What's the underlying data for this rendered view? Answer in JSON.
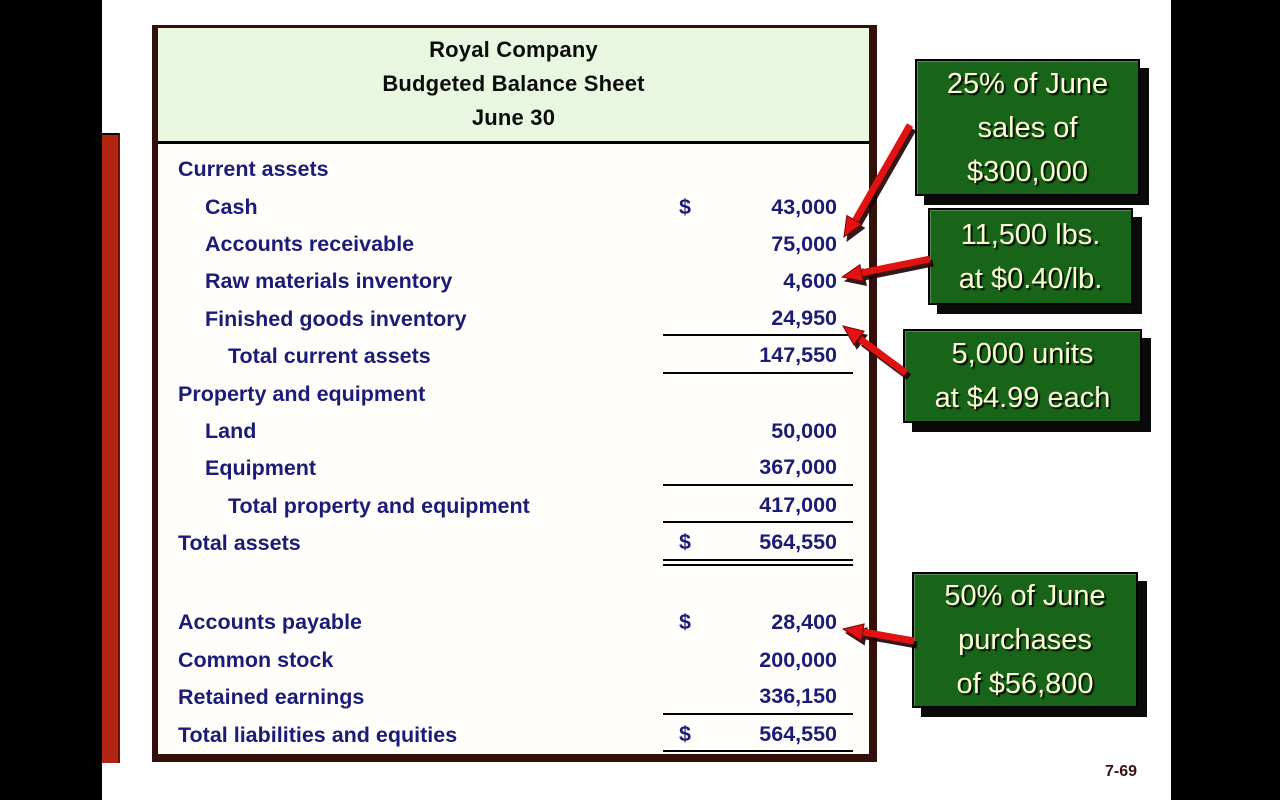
{
  "slide": {
    "page_number": "7-69"
  },
  "balance_sheet": {
    "title_lines": [
      "Royal Company",
      "Budgeted Balance Sheet",
      "June 30"
    ],
    "rows": [
      {
        "label": "Current assets",
        "indent": 0,
        "cur": "",
        "val": "",
        "rule": "none"
      },
      {
        "label": "Cash",
        "indent": 1,
        "cur": "$",
        "val": "43,000",
        "rule": "none"
      },
      {
        "label": "Accounts receivable",
        "indent": 1,
        "cur": "",
        "val": "75,000",
        "rule": "none"
      },
      {
        "label": "Raw materials inventory",
        "indent": 1,
        "cur": "",
        "val": "4,600",
        "rule": "none"
      },
      {
        "label": "Finished goods inventory",
        "indent": 1,
        "cur": "",
        "val": "24,950",
        "rule": "single"
      },
      {
        "label": "Total current assets",
        "indent": 2,
        "cur": "",
        "val": "147,550",
        "rule": "single"
      },
      {
        "label": "Property and equipment",
        "indent": 0,
        "cur": "",
        "val": "",
        "rule": "none"
      },
      {
        "label": "Land",
        "indent": 1,
        "cur": "",
        "val": "50,000",
        "rule": "none"
      },
      {
        "label": "Equipment",
        "indent": 1,
        "cur": "",
        "val": "367,000",
        "rule": "single"
      },
      {
        "label": "Total property and equipment",
        "indent": 2,
        "cur": "",
        "val": "417,000",
        "rule": "single"
      },
      {
        "label": "Total assets",
        "indent": 0,
        "cur": "$",
        "val": "564,550",
        "rule": "double"
      },
      {
        "label": "",
        "spacer": true
      },
      {
        "label": "Accounts payable",
        "indent": 0,
        "cur": "$",
        "val": "28,400",
        "rule": "none"
      },
      {
        "label": "Common stock",
        "indent": 0,
        "cur": "",
        "val": "200,000",
        "rule": "none"
      },
      {
        "label": "Retained earnings",
        "indent": 0,
        "cur": "",
        "val": "336,150",
        "rule": "single"
      },
      {
        "label": "Total liabilities and equities",
        "indent": 0,
        "cur": "$",
        "val": "564,550",
        "rule": "single"
      }
    ]
  },
  "callouts": [
    {
      "lines": [
        "25% of June",
        "sales of",
        "$300,000"
      ]
    },
    {
      "lines": [
        "11,500 lbs.",
        "at $0.40/lb."
      ]
    },
    {
      "lines": [
        "5,000 units",
        "at $4.99 each"
      ]
    },
    {
      "lines": [
        "50% of June",
        "purchases",
        "of $56,800"
      ]
    }
  ],
  "colors": {
    "callout_green": "#186418",
    "callout_text": "#ffffd4",
    "table_text_navy": "#1b1b78",
    "table_border_maroon": "#35100b",
    "header_green": "#eaf7e0",
    "arrow_red": "#e01212",
    "accent_bar_red": "#b02512",
    "page_number_maroon": "#3d1016"
  }
}
